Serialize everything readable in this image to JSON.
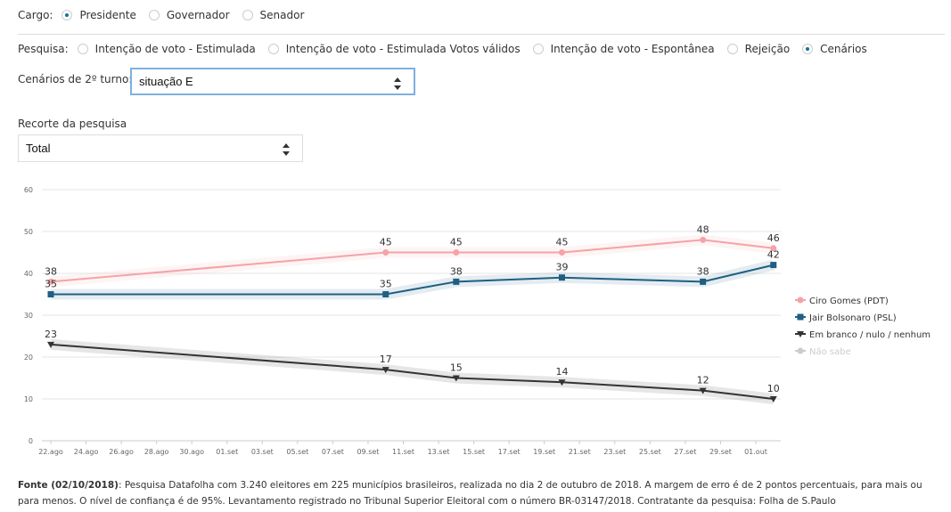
{
  "filters": {
    "cargo": {
      "label": "Cargo:",
      "options": [
        "Presidente",
        "Governador",
        "Senador"
      ],
      "selected": 0
    },
    "pesquisa": {
      "label": "Pesquisa:",
      "options": [
        "Intenção de voto - Estimulada",
        "Intenção de voto - Estimulada Votos válidos",
        "Intenção de voto - Espontânea",
        "Rejeição",
        "Cenários"
      ],
      "selected": 4
    },
    "cenarios": {
      "label": "Cenários de 2º turno:",
      "value": "situação E"
    },
    "recorte": {
      "label": "Recorte da pesquisa",
      "value": "Total"
    }
  },
  "chart_data": {
    "type": "line",
    "x": [
      "22.ago",
      "10.set",
      "14.set",
      "20.set",
      "28.set",
      "02.out"
    ],
    "xticks": [
      "22.ago",
      "24.ago",
      "26.ago",
      "28.ago",
      "30.ago",
      "01.set",
      "03.set",
      "05.set",
      "07.set",
      "09.set",
      "11.set",
      "13.set",
      "15.set",
      "17.set",
      "19.set",
      "21.set",
      "23.set",
      "25.set",
      "27.set",
      "29.set",
      "01.out"
    ],
    "ylim": [
      0,
      60
    ],
    "yticks": [
      0,
      10,
      20,
      30,
      40,
      50,
      60
    ],
    "grid": true,
    "series": [
      {
        "name": "Ciro Gomes (PDT)",
        "color": "#f4a3a8",
        "marker": "circle",
        "visible": true,
        "values": [
          38,
          45,
          45,
          45,
          48,
          46
        ]
      },
      {
        "name": "Jair Bolsonaro (PSL)",
        "color": "#1f5f82",
        "marker": "square",
        "visible": true,
        "values": [
          35,
          35,
          38,
          39,
          38,
          42
        ]
      },
      {
        "name": "Em branco / nulo / nenhum",
        "color": "#333333",
        "marker": "triangle-down",
        "visible": true,
        "values": [
          23,
          17,
          15,
          14,
          12,
          10
        ]
      },
      {
        "name": "Não sabe",
        "color": "#cccccc",
        "marker": "circle",
        "visible": false,
        "values": [
          null,
          null,
          null,
          null,
          null,
          null
        ]
      }
    ],
    "legend": "right"
  },
  "footer": {
    "source": "Fonte (02/10/2018)",
    "text": ": Pesquisa Datafolha com 3.240 eleitores em 225 municípios brasileiros, realizada no dia 2 de outubro de 2018. A margem de erro é de 2 pontos percentuais, para mais ou para menos. O nível de confiança é de 95%. Levantamento registrado no Tribunal Superior Eleitoral com o número BR-03147/2018. Contratante da pesquisa: Folha de S.Paulo"
  }
}
